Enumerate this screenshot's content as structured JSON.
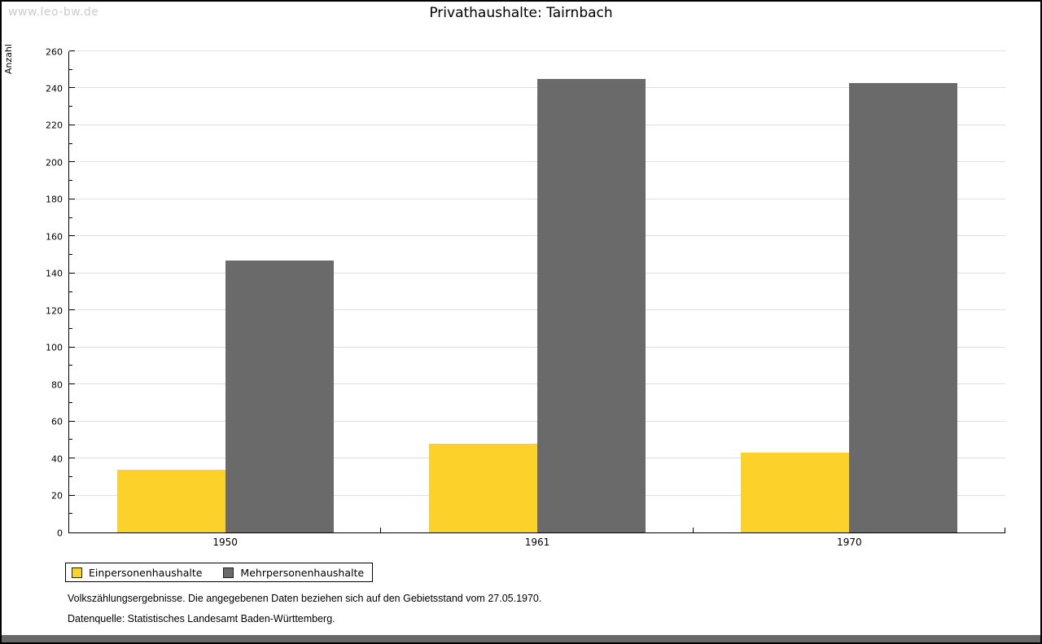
{
  "page": {
    "watermark": "www.leo-bw.de",
    "title": "Privathaushalte: Tairnbach"
  },
  "chart_data": {
    "type": "bar",
    "title": "Privathaushalte: Tairnbach",
    "xlabel": "",
    "ylabel": "Anzahl",
    "categories": [
      "1950",
      "1961",
      "1970"
    ],
    "series": [
      {
        "name": "Einpersonenhaushalte",
        "color": "#FCD12A",
        "values": [
          34,
          48,
          43
        ]
      },
      {
        "name": "Mehrpersonenhaushalte",
        "color": "#6A6A6A",
        "values": [
          147,
          245,
          243
        ]
      }
    ],
    "ylim": [
      0,
      260
    ],
    "y_major_step": 20,
    "y_minor_step": 10,
    "grid": "horizontal-major-light-gray",
    "legend_position": "bottom-left",
    "bar_layout": "grouped-pairs-touching"
  },
  "footer": {
    "line1": "Volkszählungsergebnisse. Die angegebenen Daten beziehen sich auf den Gebietsstand vom 27.05.1970.",
    "line2": "Datenquelle: Statistisches Landesamt Baden-Württemberg."
  },
  "colors": {
    "series1": "#FCD12A",
    "series2": "#6A6A6A",
    "gridline": "#E0E0E0",
    "axis": "#000000",
    "watermark": "#CCCCCC",
    "bottom_strip": "#686868",
    "page_border": "#000000",
    "background": "#FFFFFF"
  }
}
